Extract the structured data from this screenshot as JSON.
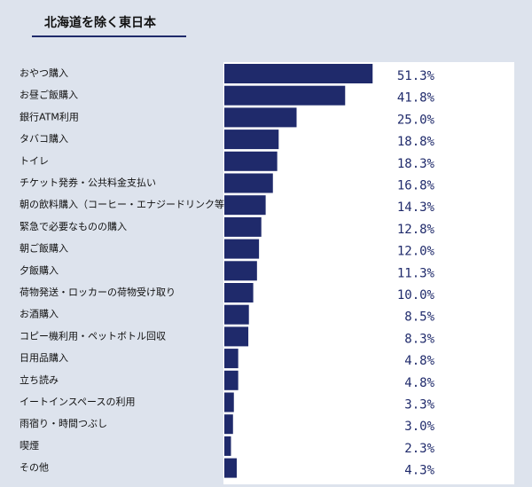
{
  "chart_data": {
    "type": "bar",
    "orientation": "horizontal",
    "title": "北海道を除く東日本",
    "categories": [
      "おやつ購入",
      "お昼ご飯購入",
      "銀行ATM利用",
      "タバコ購入",
      "トイレ",
      "チケット発券・公共料金支払い",
      "朝の飲料購入（コーヒー・エナジードリンク等）",
      "緊急で必要なものの購入",
      "朝ご飯購入",
      "夕飯購入",
      "荷物発送・ロッカーの荷物受け取り",
      "お酒購入",
      "コピー機利用・ペットボトル回収",
      "日用品購入",
      "立ち読み",
      "イートインスペースの利用",
      "雨宿り・時間つぶし",
      "喫煙",
      "その他"
    ],
    "values": [
      51.3,
      41.8,
      25.0,
      18.8,
      18.3,
      16.8,
      14.3,
      12.8,
      12.0,
      11.3,
      10.0,
      8.5,
      8.3,
      4.8,
      4.8,
      3.3,
      3.0,
      2.3,
      4.3
    ],
    "value_labels": [
      "51.3%",
      "41.8%",
      "25.0%",
      "18.8%",
      "18.3%",
      "16.8%",
      "14.3%",
      "12.8%",
      "12.0%",
      "11.3%",
      "10.0%",
      "8.5%",
      "8.3%",
      "4.8%",
      "4.8%",
      "3.3%",
      "3.0%",
      "2.3%",
      "4.3%"
    ],
    "color": "#1f2a6b"
  }
}
